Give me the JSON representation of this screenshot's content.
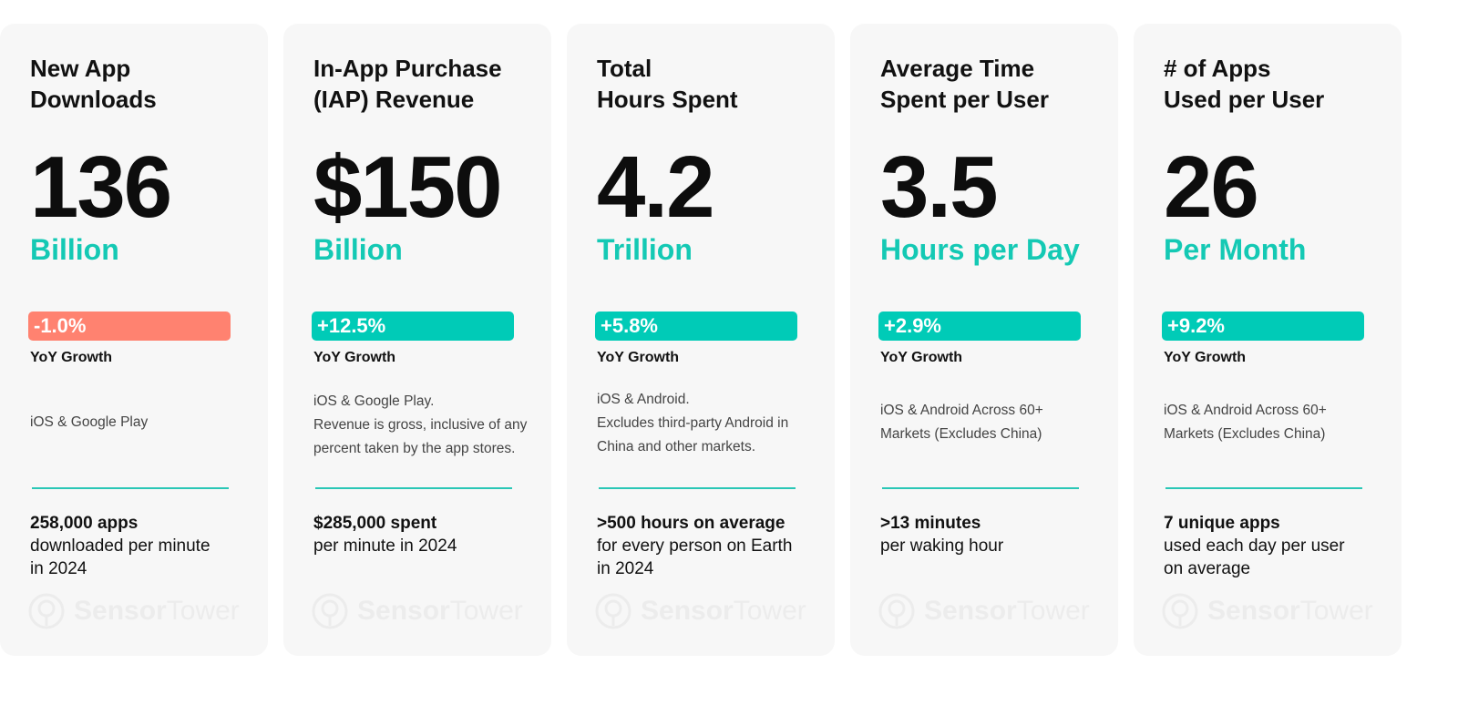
{
  "cards": [
    {
      "title_lines": [
        "New App",
        "Downloads"
      ],
      "value": "136",
      "unit": "Billion",
      "growth": "-1.0%",
      "growth_direction": "negative",
      "growth_label": "YoY Growth",
      "note_lines": [
        "iOS & Google Play"
      ],
      "stat_bold": "258,000 apps",
      "stat_rest": [
        "downloaded per minute",
        "in 2024"
      ]
    },
    {
      "title_lines": [
        "In-App Purchase",
        "(IAP) Revenue"
      ],
      "value": "$150",
      "unit": "Billion",
      "growth": "+12.5%",
      "growth_direction": "positive",
      "growth_label": "YoY Growth",
      "note_lines": [
        "iOS & Google Play.",
        "Revenue is gross, inclusive of any",
        "percent taken by the app stores."
      ],
      "stat_bold": "$285,000 spent",
      "stat_rest": [
        "per minute in 2024"
      ]
    },
    {
      "title_lines": [
        "Total",
        "Hours Spent"
      ],
      "value": "4.2",
      "unit": "Trillion",
      "growth": "+5.8%",
      "growth_direction": "positive",
      "growth_label": "YoY Growth",
      "note_lines": [
        "iOS & Android.",
        "Excludes third-party Android in",
        "China and other markets."
      ],
      "stat_bold": ">500 hours on average",
      "stat_rest": [
        "for every person on Earth",
        "in 2024"
      ]
    },
    {
      "title_lines": [
        "Average Time",
        "Spent per User"
      ],
      "value": "3.5",
      "unit": "Hours per Day",
      "growth": "+2.9%",
      "growth_direction": "positive",
      "growth_label": "YoY Growth",
      "note_lines": [
        "iOS & Android Across 60+",
        "Markets (Excludes China)"
      ],
      "stat_bold": ">13 minutes",
      "stat_rest": [
        "per waking hour"
      ]
    },
    {
      "title_lines": [
        "# of Apps",
        "Used per User"
      ],
      "value": "26",
      "unit": "Per Month",
      "growth": "+9.2%",
      "growth_direction": "positive",
      "growth_label": "YoY Growth",
      "note_lines": [
        "iOS & Android Across 60+",
        "Markets (Excludes China)"
      ],
      "stat_bold": "7 unique apps",
      "stat_rest": [
        "used each day per user",
        "on average"
      ]
    }
  ],
  "watermark": {
    "word1": "Sensor",
    "word2": "Tower",
    "icon": "sensor-tower-logo-icon"
  },
  "colors": {
    "accent": "#00cbb7",
    "negative": "#ff8270",
    "unit_text": "#14c9b4",
    "card_bg": "#f7f7f7"
  }
}
